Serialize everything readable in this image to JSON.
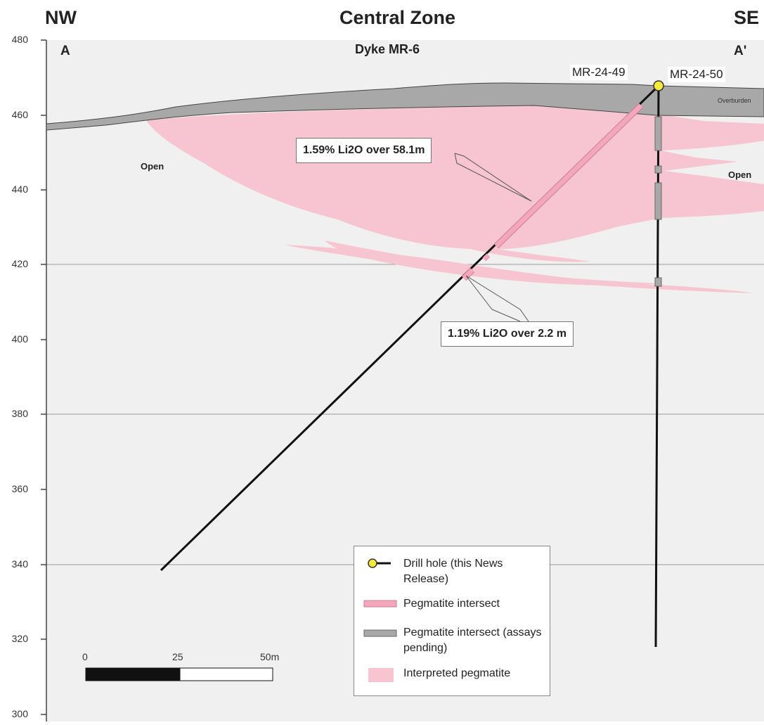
{
  "header": {
    "left": "NW",
    "center": "Central Zone",
    "right": "SE"
  },
  "section": {
    "start_label": "A",
    "end_label": "A'",
    "title": "Dyke MR-6"
  },
  "axis": {
    "ticks": [
      "480",
      "460",
      "440",
      "420",
      "400",
      "380",
      "360",
      "340",
      "320",
      "300"
    ]
  },
  "holes": {
    "hole_a": "MR-24-49",
    "hole_b": "MR-24-50"
  },
  "labels": {
    "open_left": "Open",
    "open_right": "Open",
    "overburden": "Overburden"
  },
  "intersections": {
    "upper": "1.59% Li2O over 58.1m",
    "lower": "1.19% Li2O over 2.2 m"
  },
  "legend": {
    "drill_hole": "Drill hole (this News Release)",
    "pegmatite_intersect": "Pegmatite intersect",
    "pegmatite_pending": "Pegmatite intersect (assays pending)",
    "interpreted": "Interpreted pegmatite"
  },
  "scale_bar": {
    "labels": [
      "0",
      "25",
      "50m"
    ]
  },
  "colors": {
    "background": "#f0f0f0",
    "pegmatite": "#f6c5d1",
    "intersect": "#f4a6bb",
    "overburden": "#a8a8a8",
    "drill_collar": "#f5ea3a"
  }
}
